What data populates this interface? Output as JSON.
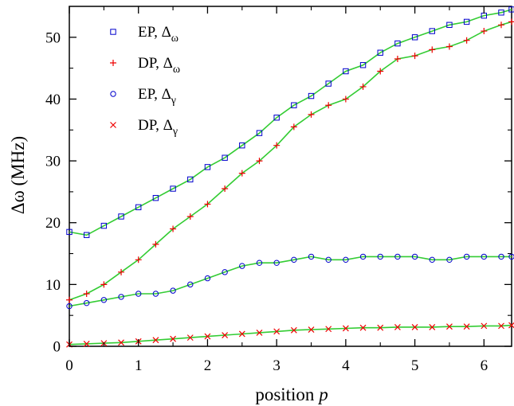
{
  "chart_data": {
    "type": "scatter",
    "xlabel": "position",
    "xlabel_var": "p",
    "ylabel": "Δω (MHz)",
    "xlim": [
      0,
      6.4
    ],
    "ylim": [
      0,
      55
    ],
    "x_ticks": [
      "0",
      "1",
      "2",
      "3",
      "4",
      "5",
      "6"
    ],
    "y_ticks": [
      "0",
      "10",
      "20",
      "30",
      "40",
      "50"
    ],
    "grid": false,
    "legend_position": "top-left",
    "series": [
      {
        "name": "EP, Δω",
        "name_main": "EP, Δ",
        "name_sub": "ω",
        "marker": "square",
        "color": "#0000cc",
        "fit_color": "#33cc33",
        "x": [
          0,
          0.25,
          0.5,
          0.75,
          1.0,
          1.25,
          1.5,
          1.75,
          2.0,
          2.25,
          2.5,
          2.75,
          3.0,
          3.25,
          3.5,
          3.75,
          4.0,
          4.25,
          4.5,
          4.75,
          5.0,
          5.25,
          5.5,
          5.75,
          6.0,
          6.25,
          6.4
        ],
        "values": [
          18.5,
          18.0,
          19.5,
          21.0,
          22.5,
          24.0,
          25.5,
          27.0,
          29.0,
          30.5,
          32.5,
          34.5,
          37.0,
          39.0,
          40.5,
          42.5,
          44.5,
          45.5,
          47.5,
          49.0,
          50.0,
          51.0,
          52.0,
          52.5,
          53.5,
          54.0,
          54.5
        ]
      },
      {
        "name": "DP, Δω",
        "name_main": "DP, Δ",
        "name_sub": "ω",
        "marker": "plus",
        "color": "#ee0000",
        "fit_color": "#33cc33",
        "x": [
          0,
          0.25,
          0.5,
          0.75,
          1.0,
          1.25,
          1.5,
          1.75,
          2.0,
          2.25,
          2.5,
          2.75,
          3.0,
          3.25,
          3.5,
          3.75,
          4.0,
          4.25,
          4.5,
          4.75,
          5.0,
          5.25,
          5.5,
          5.75,
          6.0,
          6.25,
          6.4
        ],
        "values": [
          7.5,
          8.5,
          10.0,
          12.0,
          14.0,
          16.5,
          19.0,
          21.0,
          23.0,
          25.5,
          28.0,
          30.0,
          32.5,
          35.5,
          37.5,
          39.0,
          40.0,
          42.0,
          44.5,
          46.5,
          47.0,
          48.0,
          48.5,
          49.5,
          51.0,
          52.0,
          52.5
        ]
      },
      {
        "name": "EP, Δγ",
        "name_main": "EP, Δ",
        "name_sub": "γ",
        "marker": "circle",
        "color": "#0000cc",
        "fit_color": "#33cc33",
        "x": [
          0,
          0.25,
          0.5,
          0.75,
          1.0,
          1.25,
          1.5,
          1.75,
          2.0,
          2.25,
          2.5,
          2.75,
          3.0,
          3.25,
          3.5,
          3.75,
          4.0,
          4.25,
          4.5,
          4.75,
          5.0,
          5.25,
          5.5,
          5.75,
          6.0,
          6.25,
          6.4
        ],
        "values": [
          6.5,
          7.0,
          7.5,
          8.0,
          8.5,
          8.5,
          9.0,
          10.0,
          11.0,
          12.0,
          13.0,
          13.5,
          13.5,
          14.0,
          14.5,
          14.0,
          14.0,
          14.5,
          14.5,
          14.5,
          14.5,
          14.0,
          14.0,
          14.5,
          14.5,
          14.5,
          14.5
        ]
      },
      {
        "name": "DP, Δγ",
        "name_main": "DP, Δ",
        "name_sub": "γ",
        "marker": "cross",
        "color": "#ee0000",
        "fit_color": "#33cc33",
        "x": [
          0,
          0.25,
          0.5,
          0.75,
          1.0,
          1.25,
          1.5,
          1.75,
          2.0,
          2.25,
          2.5,
          2.75,
          3.0,
          3.25,
          3.5,
          3.75,
          4.0,
          4.25,
          4.5,
          4.75,
          5.0,
          5.25,
          5.5,
          5.75,
          6.0,
          6.25,
          6.4
        ],
        "values": [
          0.3,
          0.4,
          0.5,
          0.6,
          0.8,
          1.0,
          1.2,
          1.4,
          1.6,
          1.8,
          2.0,
          2.2,
          2.4,
          2.6,
          2.7,
          2.8,
          2.9,
          3.0,
          3.0,
          3.1,
          3.1,
          3.1,
          3.2,
          3.2,
          3.3,
          3.3,
          3.4
        ]
      }
    ]
  }
}
